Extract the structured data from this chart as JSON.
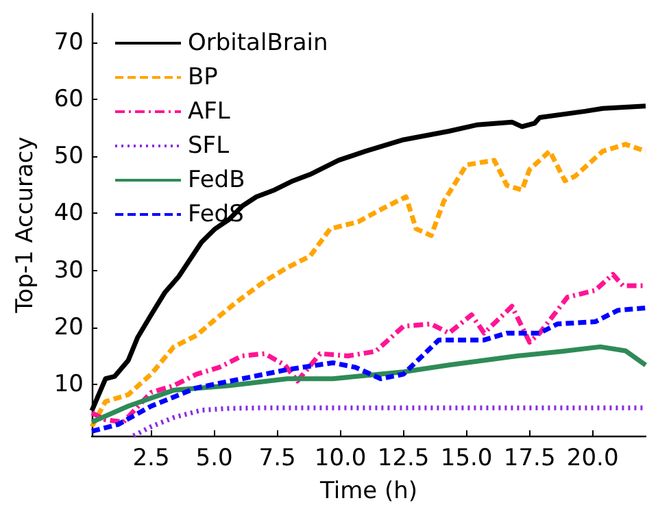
{
  "chart_data": {
    "type": "line",
    "xlabel": "Time (h)",
    "ylabel": "Top-1 Accuracy",
    "xlim": [
      0.15,
      22.1
    ],
    "ylim": [
      1,
      75
    ],
    "xticks": [
      {
        "value": 2.5,
        "label": "2.5"
      },
      {
        "value": 5,
        "label": "5.0"
      },
      {
        "value": 7.5,
        "label": "7.5"
      },
      {
        "value": 10,
        "label": "10.0"
      },
      {
        "value": 12.5,
        "label": "12.5"
      },
      {
        "value": 15,
        "label": "15.0"
      },
      {
        "value": 17.5,
        "label": "17.5"
      },
      {
        "value": 20,
        "label": "20.0"
      }
    ],
    "yticks": [
      10,
      20,
      30,
      40,
      50,
      60,
      70
    ],
    "grid": false,
    "legend": "top left",
    "marker": "none",
    "series": [
      {
        "name": "OrbitalBrain",
        "color": "#000000",
        "line_style": "solid",
        "x": [
          0.15,
          0.69,
          1.05,
          1.59,
          1.96,
          2.5,
          3.04,
          3.59,
          3.95,
          4.49,
          5.04,
          5.58,
          6.12,
          6.67,
          7.39,
          8.12,
          8.84,
          9.93,
          11.0,
          12.5,
          14.3,
          15.4,
          16.8,
          17.2,
          17.7,
          17.9,
          19.7,
          20.4,
          22.1
        ],
        "values": [
          5.4,
          11.0,
          11.4,
          14.2,
          18.2,
          22.2,
          26.1,
          28.9,
          31.3,
          34.9,
          37.3,
          38.9,
          41.3,
          42.9,
          44.1,
          45.7,
          46.9,
          49.3,
          50.9,
          52.9,
          54.4,
          55.5,
          56.0,
          55.2,
          55.8,
          56.8,
          57.9,
          58.4,
          58.8
        ]
      },
      {
        "name": "BP",
        "color": "#ffa500",
        "line_style": "dashed",
        "x": [
          0.15,
          0.69,
          1.59,
          2.5,
          3.4,
          4.3,
          5.04,
          5.9,
          7.0,
          7.9,
          8.8,
          9.6,
          10.7,
          11.7,
          12.6,
          13.0,
          13.6,
          14.1,
          15.0,
          16.1,
          16.6,
          17.2,
          17.5,
          18.3,
          18.9,
          19.3,
          20.4,
          21.3,
          22.1
        ],
        "values": [
          2.6,
          7.0,
          8.2,
          11.8,
          16.6,
          18.6,
          21.4,
          24.5,
          28.1,
          30.5,
          32.5,
          37.3,
          38.5,
          40.9,
          42.9,
          37.3,
          36.1,
          42.1,
          48.5,
          49.3,
          44.9,
          44.1,
          47.7,
          50.9,
          45.7,
          46.5,
          50.9,
          52.1,
          50.9
        ]
      },
      {
        "name": "AFL",
        "color": "#ff1493",
        "line_style": "dashdot",
        "x": [
          0.15,
          0.69,
          1.4,
          2.5,
          3.4,
          4.3,
          5.2,
          6.1,
          7.0,
          7.8,
          8.3,
          9.2,
          10.3,
          11.4,
          12.5,
          13.6,
          14.3,
          15.2,
          15.7,
          16.8,
          17.5,
          17.9,
          19.0,
          20.1,
          20.8,
          21.2,
          22.1
        ],
        "values": [
          5.0,
          3.8,
          3.4,
          8.6,
          9.8,
          11.8,
          13.0,
          15.0,
          15.4,
          13.4,
          10.6,
          15.4,
          15.0,
          15.8,
          20.2,
          20.6,
          19.0,
          22.2,
          19.0,
          23.7,
          17.4,
          19.0,
          25.3,
          26.5,
          29.3,
          27.3,
          27.3
        ]
      },
      {
        "name": "SFL",
        "color": "#8a2be2",
        "line_style": "dotted",
        "x": [
          1.8,
          2.5,
          3.4,
          4.5,
          5.6,
          7.0,
          22.1
        ],
        "values": [
          1.0,
          2.6,
          4.2,
          5.5,
          5.8,
          5.9,
          5.9
        ]
      },
      {
        "name": "FedB",
        "color": "#2e8b57",
        "line_style": "solid",
        "x": [
          0.15,
          1.59,
          3.4,
          5.6,
          7.9,
          9.7,
          12.5,
          14.3,
          17.0,
          18.8,
          20.3,
          21.3,
          22.1
        ],
        "values": [
          3.4,
          6.2,
          9.0,
          9.8,
          11.0,
          11.0,
          12.2,
          13.4,
          15.0,
          15.8,
          16.6,
          15.9,
          13.4
        ]
      },
      {
        "name": "FedS",
        "color": "#0000ff",
        "line_style": "dashed",
        "x": [
          0.15,
          1.2,
          2.5,
          4.3,
          6.1,
          7.9,
          9.7,
          10.6,
          11.6,
          12.5,
          13.9,
          15.7,
          16.6,
          17.9,
          18.6,
          20.1,
          21.0,
          22.1
        ],
        "values": [
          1.8,
          3.0,
          6.2,
          9.4,
          11.0,
          12.6,
          13.8,
          13.0,
          11.0,
          11.8,
          17.8,
          17.8,
          19.0,
          19.0,
          20.6,
          21.0,
          23.0,
          23.4
        ]
      }
    ]
  }
}
